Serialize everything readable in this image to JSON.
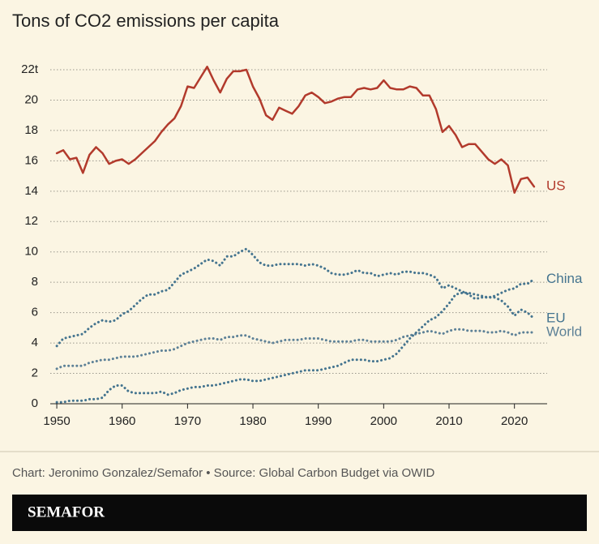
{
  "chart_data": {
    "type": "line",
    "title": "Tons of CO2 emissions per capita",
    "source": "Chart: Jeronimo Gonzalez/Semafor • Source: Global Carbon Budget via OWID",
    "brand": "SEMAFOR",
    "x": [
      1950,
      1951,
      1952,
      1953,
      1954,
      1955,
      1956,
      1957,
      1958,
      1959,
      1960,
      1961,
      1962,
      1963,
      1964,
      1965,
      1966,
      1967,
      1968,
      1969,
      1970,
      1971,
      1972,
      1973,
      1974,
      1975,
      1976,
      1977,
      1978,
      1979,
      1980,
      1981,
      1982,
      1983,
      1984,
      1985,
      1986,
      1987,
      1988,
      1989,
      1990,
      1991,
      1992,
      1993,
      1994,
      1995,
      1996,
      1997,
      1998,
      1999,
      2000,
      2001,
      2002,
      2003,
      2004,
      2005,
      2006,
      2007,
      2008,
      2009,
      2010,
      2011,
      2012,
      2013,
      2014,
      2015,
      2016,
      2017,
      2018,
      2019,
      2020,
      2021,
      2022,
      2023
    ],
    "series": [
      {
        "name": "US",
        "color": "#b23a2c",
        "style": "solid",
        "values": [
          16.5,
          16.7,
          16.1,
          16.2,
          15.2,
          16.4,
          16.9,
          16.5,
          15.8,
          16.0,
          16.1,
          15.8,
          16.1,
          16.5,
          16.9,
          17.3,
          17.9,
          18.4,
          18.8,
          19.6,
          20.9,
          20.8,
          21.5,
          22.2,
          21.3,
          20.5,
          21.4,
          21.9,
          21.9,
          22.0,
          20.9,
          20.1,
          19.0,
          18.7,
          19.5,
          19.3,
          19.1,
          19.6,
          20.3,
          20.5,
          20.2,
          19.8,
          19.9,
          20.1,
          20.2,
          20.2,
          20.7,
          20.8,
          20.7,
          20.8,
          21.3,
          20.8,
          20.7,
          20.7,
          20.9,
          20.8,
          20.3,
          20.3,
          19.4,
          17.9,
          18.3,
          17.7,
          16.9,
          17.1,
          17.1,
          16.6,
          16.1,
          15.8,
          16.1,
          15.7,
          13.9,
          14.8,
          14.9,
          14.3
        ]
      },
      {
        "name": "China",
        "color": "#44748f",
        "style": "dotted",
        "values": [
          0.1,
          0.1,
          0.2,
          0.2,
          0.2,
          0.3,
          0.3,
          0.4,
          0.9,
          1.2,
          1.2,
          0.8,
          0.7,
          0.7,
          0.7,
          0.7,
          0.8,
          0.6,
          0.7,
          0.9,
          1.0,
          1.1,
          1.1,
          1.2,
          1.2,
          1.3,
          1.4,
          1.5,
          1.6,
          1.6,
          1.5,
          1.5,
          1.6,
          1.7,
          1.8,
          1.9,
          2.0,
          2.1,
          2.2,
          2.2,
          2.2,
          2.3,
          2.4,
          2.5,
          2.7,
          2.9,
          2.9,
          2.9,
          2.8,
          2.8,
          2.9,
          3.0,
          3.3,
          3.8,
          4.3,
          4.7,
          5.1,
          5.5,
          5.7,
          6.1,
          6.6,
          7.2,
          7.3,
          7.3,
          7.2,
          7.1,
          7.0,
          7.1,
          7.3,
          7.5,
          7.6,
          7.9,
          7.9,
          8.2
        ]
      },
      {
        "name": "EU",
        "color": "#44748f",
        "style": "dotted",
        "values": [
          3.8,
          4.3,
          4.4,
          4.5,
          4.6,
          5.0,
          5.3,
          5.5,
          5.4,
          5.5,
          5.9,
          6.1,
          6.5,
          6.9,
          7.2,
          7.2,
          7.4,
          7.5,
          8.0,
          8.5,
          8.7,
          8.9,
          9.2,
          9.5,
          9.4,
          9.1,
          9.7,
          9.7,
          10.0,
          10.2,
          9.8,
          9.3,
          9.1,
          9.1,
          9.2,
          9.2,
          9.2,
          9.2,
          9.1,
          9.2,
          9.1,
          8.9,
          8.6,
          8.5,
          8.5,
          8.6,
          8.8,
          8.6,
          8.6,
          8.4,
          8.5,
          8.6,
          8.5,
          8.7,
          8.7,
          8.6,
          8.6,
          8.5,
          8.3,
          7.6,
          7.8,
          7.6,
          7.4,
          7.2,
          6.9,
          7.0,
          7.0,
          7.0,
          6.8,
          6.4,
          5.8,
          6.2,
          6.0,
          5.6
        ]
      },
      {
        "name": "World",
        "color": "#5d8197",
        "style": "dotted",
        "values": [
          2.3,
          2.5,
          2.5,
          2.5,
          2.5,
          2.7,
          2.8,
          2.9,
          2.9,
          3.0,
          3.1,
          3.1,
          3.1,
          3.2,
          3.3,
          3.4,
          3.5,
          3.5,
          3.6,
          3.8,
          4.0,
          4.1,
          4.2,
          4.3,
          4.3,
          4.2,
          4.4,
          4.4,
          4.5,
          4.5,
          4.3,
          4.2,
          4.1,
          4.0,
          4.1,
          4.2,
          4.2,
          4.2,
          4.3,
          4.3,
          4.3,
          4.2,
          4.1,
          4.1,
          4.1,
          4.1,
          4.2,
          4.2,
          4.1,
          4.1,
          4.1,
          4.1,
          4.2,
          4.4,
          4.5,
          4.6,
          4.7,
          4.8,
          4.7,
          4.6,
          4.8,
          4.9,
          4.9,
          4.8,
          4.8,
          4.8,
          4.7,
          4.7,
          4.8,
          4.7,
          4.5,
          4.7,
          4.7,
          4.7
        ]
      }
    ],
    "xlim": [
      1949,
      2025
    ],
    "xticks": [
      1950,
      1960,
      1970,
      1980,
      1990,
      2000,
      2010,
      2020
    ],
    "ylim": [
      0,
      22
    ],
    "yticks": [
      0,
      2,
      4,
      6,
      8,
      10,
      12,
      14,
      16,
      18,
      20,
      {
        "value": 22,
        "label": "22t"
      }
    ],
    "grid": true
  }
}
